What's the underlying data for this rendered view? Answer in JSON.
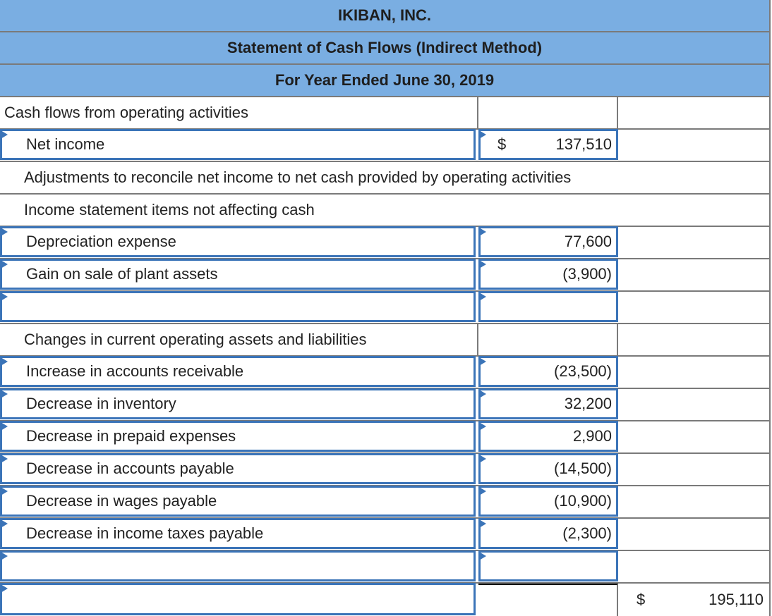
{
  "header": {
    "company": "IKIBAN, INC.",
    "statement": "Statement of Cash Flows (Indirect Method)",
    "period": "For Year Ended June 30, 2019"
  },
  "colors": {
    "header_bg": "#7aaee2",
    "input_border": "#3b74b8",
    "grid": "#7a7a7a"
  },
  "rows": [
    {
      "label": "Cash flows from operating activities",
      "amount": "",
      "total": ""
    },
    {
      "label": "Net income",
      "currency": "$",
      "amount": "137,510",
      "total": ""
    },
    {
      "label": "Adjustments to reconcile net income to net cash provided by operating activities"
    },
    {
      "label": "Income statement items not affecting cash"
    },
    {
      "label": "Depreciation expense",
      "amount": "77,600"
    },
    {
      "label": "Gain on sale of plant assets",
      "amount": "(3,900)"
    },
    {
      "label": "",
      "amount": ""
    },
    {
      "label": "Changes in current operating assets and liabilities",
      "amount": ""
    },
    {
      "label": "Increase in accounts receivable",
      "amount": "(23,500)"
    },
    {
      "label": "Decrease in inventory",
      "amount": "32,200"
    },
    {
      "label": "Decrease in prepaid expenses",
      "amount": "2,900"
    },
    {
      "label": "Decrease in accounts payable",
      "amount": "(14,500)"
    },
    {
      "label": "Decrease in wages payable",
      "amount": "(10,900)"
    },
    {
      "label": "Decrease in income taxes payable",
      "amount": "(2,300)"
    },
    {
      "label": "",
      "amount": ""
    },
    {
      "label": "",
      "amount": "",
      "currency": "$",
      "total": "195,110"
    }
  ]
}
